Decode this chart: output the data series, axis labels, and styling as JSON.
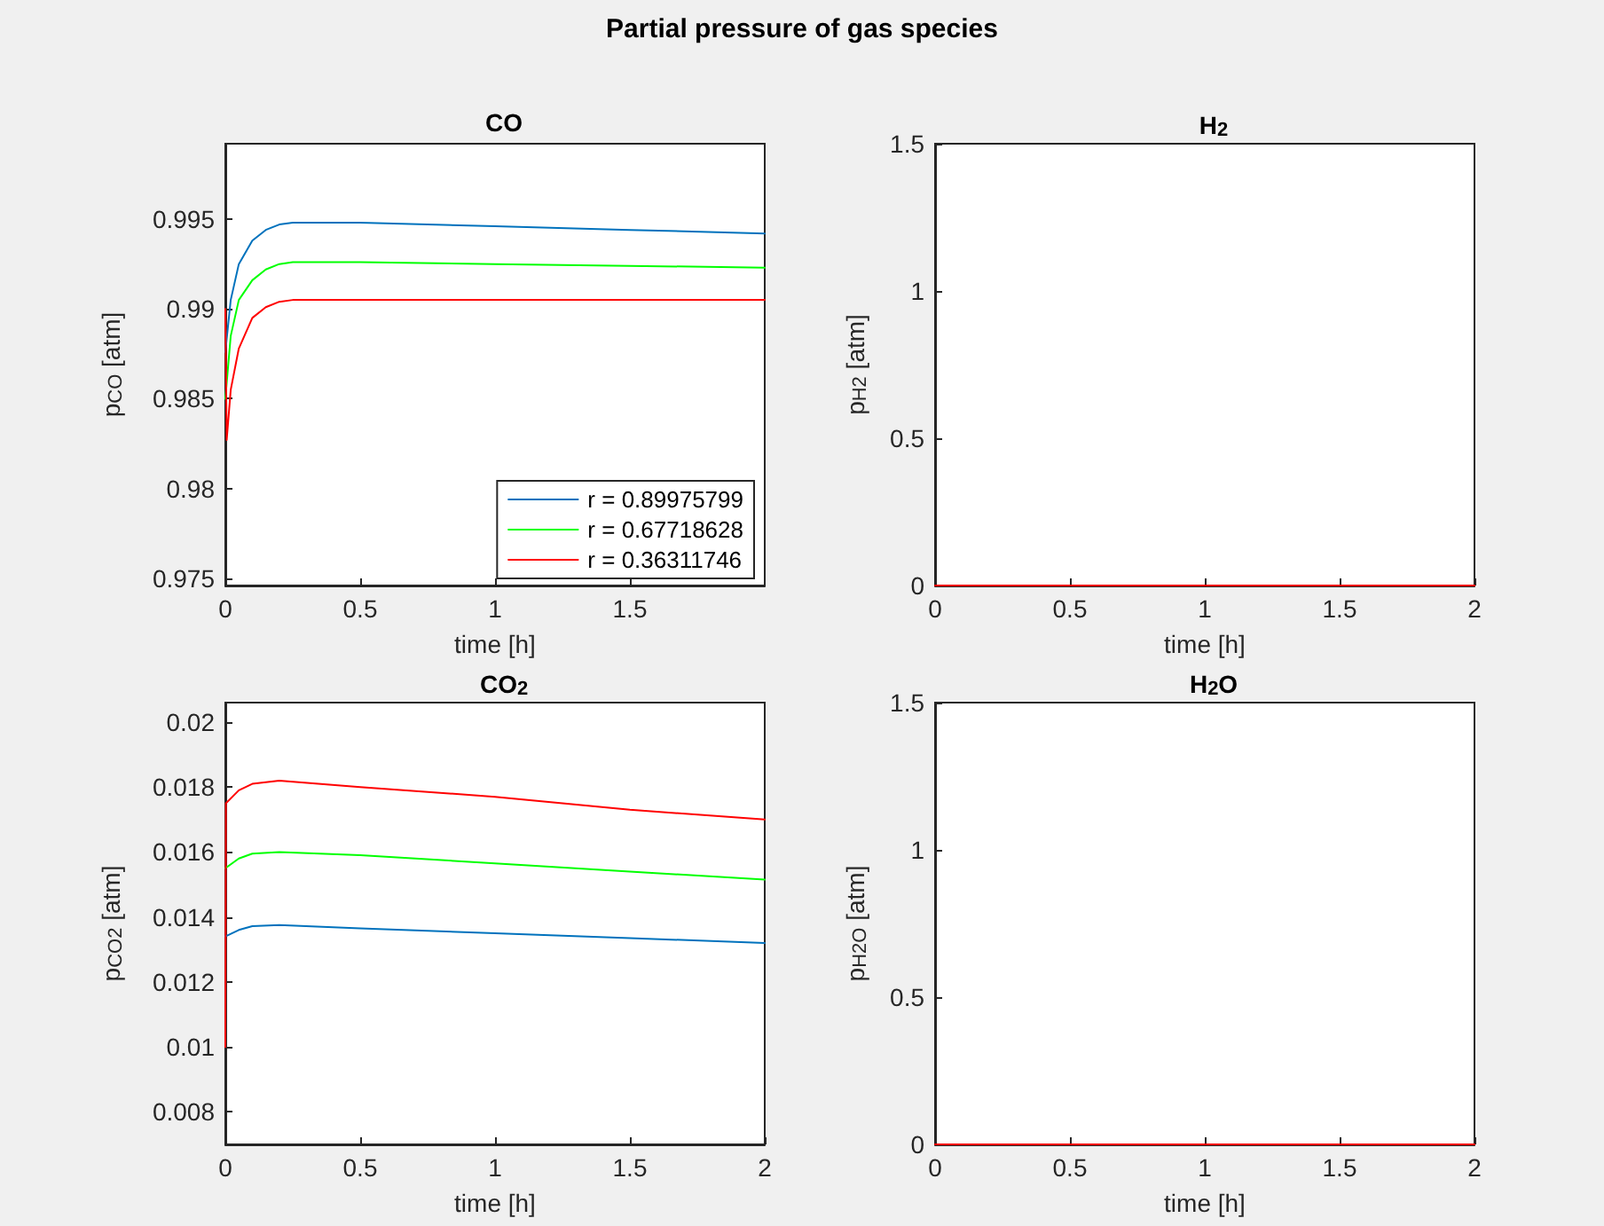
{
  "chart_data": [
    {
      "type": "line",
      "title": "CO",
      "xlabel": "time [h]",
      "ylabel": "p$_{CO}$ [atm]",
      "annotations": [
        "Partial pressure of gas species"
      ],
      "xlim": [
        0,
        2
      ],
      "xticks": [
        0,
        0.5,
        1,
        1.5
      ],
      "ylim": [
        0.9746,
        0.9992
      ],
      "yticks": [
        0.975,
        0.98,
        0.985,
        0.99,
        0.995
      ],
      "grid": false,
      "legend": "bottom right",
      "marker": "none",
      "line_style": "solid",
      "series": [
        {
          "name": "r = 0.89975799",
          "color": "#0072bd",
          "x": [
            0,
            0.02,
            0.05,
            0.1,
            0.15,
            0.2,
            0.25,
            0.3,
            0.5,
            1,
            1.5,
            2
          ],
          "values": [
            0.9876,
            0.9905,
            0.9925,
            0.9938,
            0.9944,
            0.9947,
            0.9948,
            0.9948,
            0.9948,
            0.9946,
            0.9944,
            0.9942
          ]
        },
        {
          "name": "r = 0.67718628",
          "color": "#00ff00",
          "x": [
            0,
            0.02,
            0.05,
            0.1,
            0.15,
            0.2,
            0.25,
            0.3,
            0.5,
            1,
            1.5,
            2
          ],
          "values": [
            0.985,
            0.9885,
            0.9905,
            0.9916,
            0.9922,
            0.9925,
            0.9926,
            0.9926,
            0.9926,
            0.9925,
            0.9924,
            0.9923
          ]
        },
        {
          "name": "r = 0.36311746",
          "color": "#ff0000",
          "x": [
            0,
            0.005,
            0.02,
            0.05,
            0.1,
            0.15,
            0.2,
            0.25,
            0.3,
            0.5,
            1,
            1.5,
            2
          ],
          "values": [
            0.99,
            0.9827,
            0.9855,
            0.9878,
            0.9895,
            0.9901,
            0.9904,
            0.9905,
            0.9905,
            0.9905,
            0.9905,
            0.9905,
            0.9905
          ]
        }
      ]
    },
    {
      "type": "line",
      "title": "H$_{2}$",
      "xlabel": "time [h]",
      "ylabel": "p$_{H2}$ [atm]",
      "xlim": [
        0,
        2
      ],
      "xticks": [
        0,
        0.5,
        1,
        1.5,
        2
      ],
      "ylim": [
        0,
        1.5
      ],
      "yticks": [
        0,
        0.5,
        1,
        1.5
      ],
      "grid": false,
      "marker": "none",
      "line_style": "solid",
      "series": [
        {
          "color": "#ff0000",
          "x": [
            0,
            2
          ],
          "values": [
            0,
            0
          ]
        }
      ]
    },
    {
      "type": "line",
      "title": "CO$_{2}$",
      "xlabel": "time [h]",
      "ylabel": "p$_{CO2}$ [atm]",
      "xlim": [
        0,
        2
      ],
      "xticks": [
        0,
        0.5,
        1,
        1.5,
        2
      ],
      "ylim": [
        0.007,
        0.0206
      ],
      "yticks": [
        0.008,
        0.01,
        0.012,
        0.014,
        0.016,
        0.018,
        0.02
      ],
      "grid": false,
      "marker": "none",
      "line_style": "solid",
      "series": [
        {
          "color": "#0072bd",
          "x": [
            0,
            0.05,
            0.1,
            0.2,
            0.5,
            1,
            1.5,
            2
          ],
          "values": [
            0.0134,
            0.0136,
            0.01372,
            0.01375,
            0.01365,
            0.0135,
            0.01335,
            0.0132
          ]
        },
        {
          "color": "#00ff00",
          "x": [
            0,
            0.05,
            0.1,
            0.2,
            0.5,
            1,
            1.5,
            2
          ],
          "values": [
            0.0155,
            0.0158,
            0.01595,
            0.016,
            0.0159,
            0.01565,
            0.0154,
            0.01515
          ]
        },
        {
          "color": "#ff0000",
          "x": [
            0,
            0.002,
            0.05,
            0.1,
            0.2,
            0.5,
            1,
            1.5,
            2
          ],
          "values": [
            0.01,
            0.0175,
            0.0179,
            0.0181,
            0.0182,
            0.018,
            0.0177,
            0.0173,
            0.017
          ]
        }
      ]
    },
    {
      "type": "line",
      "title": "H$_{2}$O",
      "xlabel": "time [h]",
      "ylabel": "p$_{H2O}$ [atm]",
      "xlim": [
        0,
        2
      ],
      "xticks": [
        0,
        0.5,
        1,
        1.5,
        2
      ],
      "ylim": [
        0,
        1.5
      ],
      "yticks": [
        0,
        0.5,
        1,
        1.5
      ],
      "grid": false,
      "marker": "none",
      "line_style": "solid",
      "series": [
        {
          "color": "#ff0000",
          "x": [
            0,
            2
          ],
          "values": [
            0,
            0
          ]
        }
      ]
    }
  ]
}
